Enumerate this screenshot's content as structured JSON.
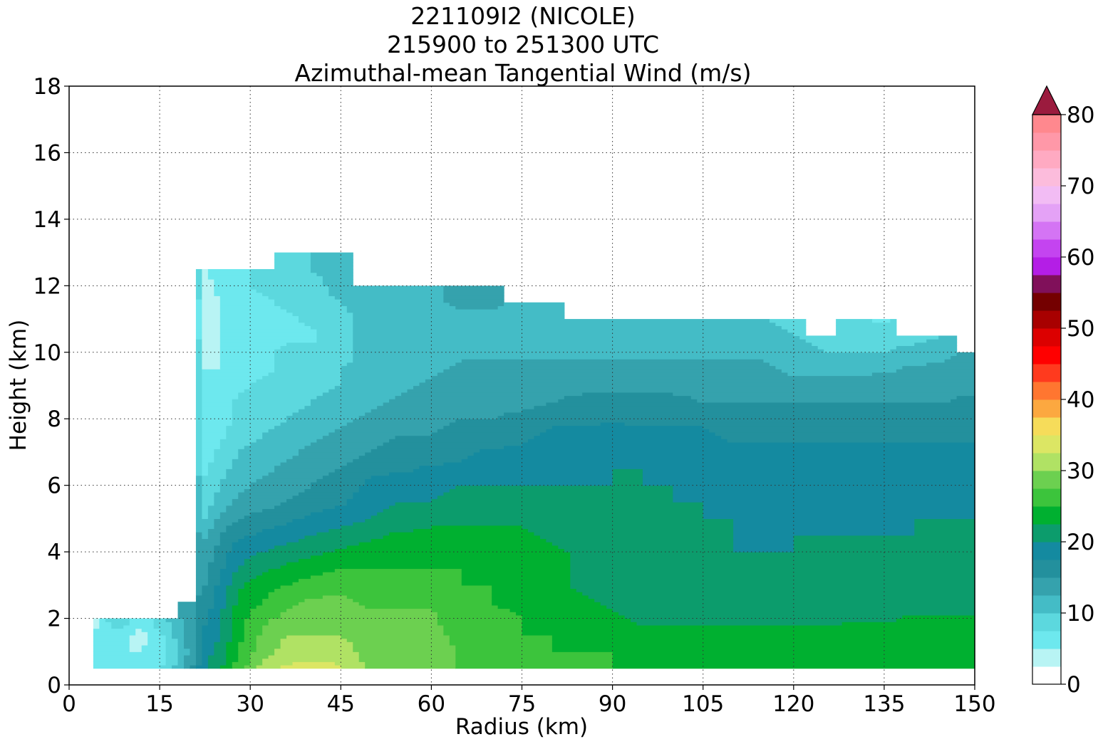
{
  "chart_data": {
    "type": "heatmap",
    "title_lines": [
      "221109I2 (NICOLE)",
      "215900 to 251300 UTC",
      "Azimuthal-mean Tangential Wind (m/s)"
    ],
    "xlabel": "Radius (km)",
    "ylabel": "Height (km)",
    "xlim": [
      0,
      150
    ],
    "ylim": [
      0,
      18
    ],
    "xticks": [
      0,
      15,
      30,
      45,
      60,
      75,
      90,
      105,
      120,
      135,
      150
    ],
    "yticks": [
      0,
      2,
      4,
      6,
      8,
      10,
      12,
      14,
      16,
      18
    ],
    "grid": true,
    "colorbar": {
      "range": [
        0,
        80
      ],
      "ticks": [
        0,
        10,
        20,
        30,
        40,
        50,
        60,
        70,
        80
      ],
      "level_step": 2.5,
      "extend": "max",
      "extend_color": "#9b1b3e",
      "colors": [
        "#ffffff",
        "#b8f4f4",
        "#6de8ee",
        "#5cd8de",
        "#44bcc6",
        "#35a2ad",
        "#23909d",
        "#148aa0",
        "#0c9c6c",
        "#00b030",
        "#3cc43c",
        "#6cd050",
        "#b0e264",
        "#dce664",
        "#f6dc5a",
        "#fca840",
        "#ff7630",
        "#ff3a1e",
        "#ff0000",
        "#dc0000",
        "#a80000",
        "#740000",
        "#80105a",
        "#b41ee6",
        "#c444f0",
        "#d474f4",
        "#e4a2f6",
        "#f2bcf4",
        "#fcbcdc",
        "#ffaac2",
        "#ff98a8",
        "#ff888e",
        "#ff7276",
        "#f65c60",
        "#e44652",
        "#c83446",
        "#ae2442",
        "#9e1c3e"
      ]
    },
    "profile_radii_km": [
      4,
      8,
      12,
      16,
      20,
      22.5,
      25,
      28,
      32,
      36,
      40,
      45,
      50,
      55,
      60,
      65,
      70,
      75,
      80,
      85,
      90,
      95,
      100,
      105,
      110,
      115,
      120,
      125,
      130,
      135,
      140,
      145,
      150
    ],
    "profile_heights_km": [
      0.5,
      1,
      1.5,
      2,
      2.5,
      3,
      3.5,
      4,
      4.5,
      5,
      5.5,
      6,
      6.5,
      7,
      7.5,
      8,
      8.5,
      9,
      9.5,
      10,
      10.5,
      11,
      11.5,
      12,
      12.5,
      13
    ],
    "data_top_km": [
      2,
      2,
      2,
      2,
      2.5,
      12.5,
      12.5,
      12.5,
      12.5,
      13,
      13,
      13,
      12,
      12,
      12,
      12,
      12,
      11.5,
      11.5,
      11,
      11,
      11,
      11,
      11,
      11,
      11,
      11,
      10.5,
      11,
      11,
      10.5,
      10.5,
      10
    ],
    "wind_profiles": [
      [
        5,
        5,
        5,
        4
      ],
      [
        5,
        5,
        6,
        10
      ],
      [
        6,
        5,
        4,
        6
      ],
      [
        8,
        7,
        8,
        10
      ],
      [
        14,
        13,
        14,
        14,
        14
      ],
      [
        20,
        19,
        18,
        17,
        16,
        15,
        14,
        14,
        12,
        10,
        9,
        8,
        7,
        6,
        5,
        5,
        5,
        5,
        5,
        4,
        3,
        3,
        3,
        4,
        5
      ],
      [
        22,
        21,
        20,
        20,
        19,
        18,
        17,
        16,
        15,
        13,
        11,
        10,
        9,
        8,
        7,
        6,
        6,
        5,
        5,
        5,
        5,
        5,
        5,
        6,
        6
      ],
      [
        26,
        25,
        24,
        24,
        23,
        22,
        20,
        19,
        17,
        15,
        13,
        12,
        11,
        10,
        9,
        8,
        8,
        7,
        7,
        6,
        6,
        6,
        6,
        7,
        7
      ],
      [
        31,
        29,
        28,
        27,
        25,
        24,
        22,
        20,
        18,
        16,
        14,
        13,
        12,
        11,
        10,
        9,
        8,
        8,
        7,
        7,
        6,
        6,
        7,
        8,
        8
      ],
      [
        33,
        31,
        30,
        28,
        27,
        25,
        23,
        21,
        19,
        17,
        15,
        14,
        13,
        12,
        11,
        10,
        9,
        9,
        8,
        8,
        7,
        7,
        8,
        8,
        9,
        9
      ],
      [
        34,
        31,
        30,
        29,
        28,
        26,
        24,
        22,
        20,
        18,
        16,
        15,
        14,
        13,
        12,
        11,
        10,
        9,
        8,
        8,
        7,
        8,
        9,
        9,
        10,
        10
      ],
      [
        33,
        31,
        30,
        29,
        28,
        27,
        25,
        23,
        21,
        19,
        17,
        16,
        15,
        14,
        13,
        12,
        11,
        10,
        10,
        9,
        9,
        9,
        10,
        11,
        11,
        11
      ],
      [
        29,
        29,
        29,
        28,
        27,
        26,
        25,
        24,
        22,
        20,
        19,
        18,
        17,
        15,
        14,
        13,
        12,
        12,
        11,
        11,
        11,
        11,
        12
      ],
      [
        29,
        29,
        29,
        28,
        27,
        26,
        25,
        24,
        23,
        21,
        20,
        19,
        17,
        16,
        15,
        14,
        13,
        12,
        12,
        11,
        11,
        11,
        12
      ],
      [
        29,
        29,
        28,
        28,
        27,
        26,
        25,
        24,
        23,
        22,
        20,
        19,
        18,
        16,
        15,
        14,
        13,
        13,
        12,
        12,
        12,
        12,
        12
      ],
      [
        27,
        27,
        27,
        26,
        26,
        25,
        25,
        24,
        23,
        22,
        21,
        20,
        18,
        17,
        16,
        15,
        14,
        13,
        13,
        12,
        12,
        12,
        13
      ],
      [
        26,
        26,
        26,
        26,
        25,
        25,
        24,
        24,
        23,
        22,
        21,
        20,
        19,
        18,
        16,
        15,
        14,
        13,
        13,
        12,
        12,
        12,
        13
      ],
      [
        25,
        25,
        25,
        25,
        24,
        24,
        24,
        23,
        23,
        22,
        21,
        20,
        19,
        18,
        17,
        16,
        14,
        13,
        13,
        12,
        12,
        12
      ],
      [
        25,
        25,
        25,
        24,
        24,
        23,
        23,
        23,
        22,
        22,
        21,
        20,
        19,
        19,
        18,
        17,
        15,
        14,
        13,
        12,
        12,
        12
      ],
      [
        25,
        25,
        24,
        24,
        23,
        22,
        22,
        22,
        22,
        21,
        21,
        20,
        19,
        19,
        18,
        17,
        16,
        14,
        13,
        12,
        11
      ],
      [
        25,
        25,
        24,
        23,
        22,
        22,
        21,
        21,
        21,
        21,
        21,
        20,
        20,
        19,
        19,
        17,
        16,
        14,
        13,
        12,
        11,
        10
      ],
      [
        25,
        24,
        23,
        22,
        22,
        21,
        21,
        21,
        21,
        21,
        20,
        20,
        20,
        19,
        18,
        17,
        16,
        14,
        13,
        12,
        11,
        10
      ],
      [
        25,
        24,
        23,
        22,
        22,
        21,
        21,
        21,
        21,
        20,
        20,
        20,
        19,
        19,
        18,
        17,
        16,
        14,
        13,
        12,
        11,
        10
      ],
      [
        25,
        24,
        23,
        22,
        21,
        21,
        21,
        20,
        20,
        20,
        20,
        19,
        19,
        18,
        18,
        17,
        15,
        14,
        13,
        12,
        11,
        10
      ],
      [
        25,
        24,
        23,
        22,
        21,
        20,
        20,
        20,
        20,
        20,
        19,
        19,
        19,
        18,
        17,
        16,
        15,
        14,
        13,
        12,
        11,
        10
      ],
      [
        25,
        24,
        23,
        22,
        21,
        21,
        20,
        20,
        19,
        19,
        19,
        19,
        18,
        18,
        17,
        16,
        15,
        14,
        13,
        12,
        11,
        10
      ],
      [
        25,
        24,
        23,
        22,
        21,
        21,
        20,
        20,
        20,
        19,
        19,
        19,
        18,
        18,
        17,
        16,
        15,
        13,
        12,
        11,
        10,
        9
      ],
      [
        25,
        24,
        23,
        22,
        21,
        21,
        20,
        20,
        20,
        19,
        19,
        19,
        18,
        18,
        17,
        16,
        15,
        13,
        12,
        10,
        9
      ],
      [
        25,
        24,
        24,
        22,
        21,
        21,
        20,
        20,
        20,
        19,
        19,
        19,
        18,
        18,
        17,
        16,
        15,
        13,
        12,
        10,
        9,
        8
      ],
      [
        25,
        24,
        24,
        22,
        21,
        21,
        20,
        20,
        20,
        19,
        19,
        19,
        18,
        18,
        17,
        16,
        15,
        14,
        12,
        10,
        9,
        7
      ],
      [
        null,
        24,
        24,
        23,
        21,
        21,
        20,
        20,
        20,
        20,
        19,
        19,
        18,
        18,
        17,
        16,
        15,
        14,
        13,
        11,
        9
      ],
      [
        null,
        24,
        24,
        23,
        21,
        21,
        20,
        20,
        20,
        20,
        19,
        19,
        18,
        18,
        17,
        16,
        15,
        14,
        13,
        12,
        10
      ],
      [
        24,
        24,
        24,
        23,
        21,
        21,
        20,
        20,
        20,
        20,
        19,
        19,
        18,
        18,
        17,
        17,
        16,
        14,
        14,
        13
      ]
    ]
  }
}
